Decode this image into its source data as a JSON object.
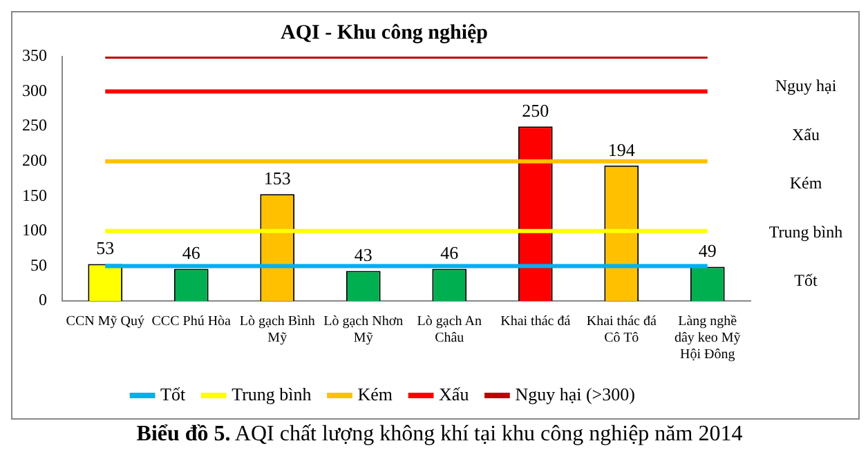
{
  "chart_data": {
    "type": "bar",
    "title": "AQI - Khu công nghiệp",
    "categories": [
      "CCN Mỹ Quý",
      "CCC Phú Hòa",
      "Lò gạch Bình Mỹ",
      "Lò gạch Nhơn Mỹ",
      "Lò gạch An Châu",
      "Khai thác đá",
      "Khai thác đá Cô Tô",
      "Làng nghề dây keo Mỹ Hội Đông"
    ],
    "series": [
      {
        "colors": [
          "#ffff00",
          "#00b050",
          "#ffc000",
          "#00b050",
          "#00b050",
          "#ff0000",
          "#ffc000",
          "#00b050"
        ],
        "values": [
          53,
          46,
          153,
          43,
          46,
          250,
          194,
          49
        ],
        "data_labels": true
      },
      {
        "type": "line",
        "name": "Tốt",
        "color": "#00b0f0",
        "values": [
          50,
          50,
          50,
          50,
          50,
          50,
          50,
          50
        ]
      },
      {
        "type": "line",
        "name": "Trung bình",
        "color": "#ffff00",
        "values": [
          100,
          100,
          100,
          100,
          100,
          100,
          100,
          100
        ]
      },
      {
        "type": "line",
        "name": "Kém",
        "color": "#ffc000",
        "values": [
          200,
          200,
          200,
          200,
          200,
          200,
          200,
          200
        ]
      },
      {
        "type": "line",
        "name": "Xấu",
        "color": "#ff0000",
        "values": [
          300,
          300,
          300,
          300,
          300,
          300,
          300,
          300
        ]
      },
      {
        "type": "line",
        "name": "Nguy hại (>300)",
        "color": "#c00000",
        "values": [
          350,
          350,
          350,
          350,
          350,
          350,
          350,
          350
        ]
      }
    ],
    "ylim": [
      0,
      350
    ],
    "yticks": [
      0,
      50,
      100,
      150,
      200,
      250,
      300,
      350
    ],
    "grid": false,
    "legend": "bottom",
    "marker": "none",
    "line_style": "solid",
    "annotations": [
      "Nguy hại",
      "Xấu",
      "Kém",
      "Trung bình",
      "Tốt",
      "Biểu đồ 5. AQI chất lượng không khí tại khu công nghiệp năm 2014"
    ]
  }
}
